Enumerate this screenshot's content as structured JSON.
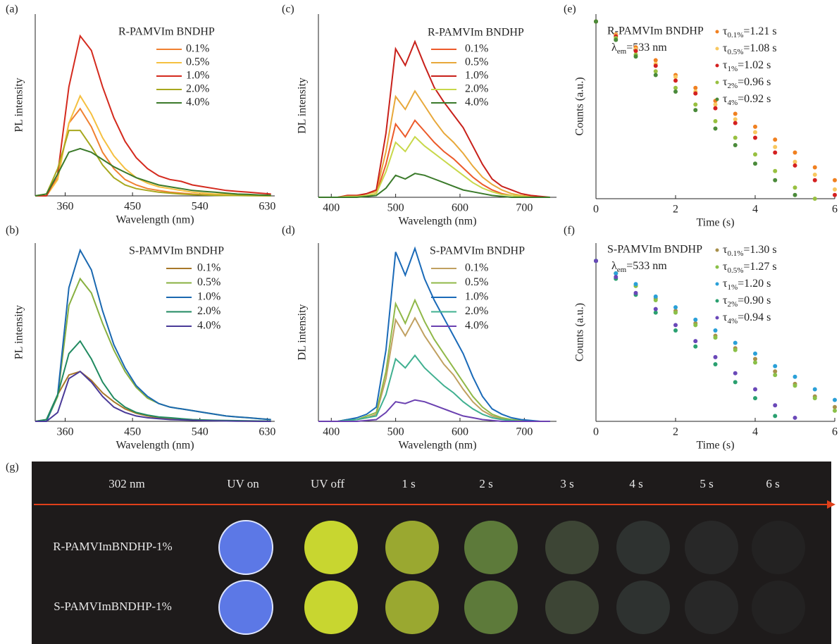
{
  "chart_data": [
    {
      "panel_label": "(a)",
      "type": "line",
      "xlabel": "Wavelength (nm)",
      "ylabel": "PL intensity",
      "legend_title": "R-PAMVIm BNDHP",
      "x": [
        320,
        335,
        350,
        365,
        380,
        395,
        410,
        425,
        440,
        455,
        470,
        485,
        500,
        515,
        530,
        545,
        560,
        575,
        590,
        605,
        620,
        635
      ],
      "xlim": [
        320,
        640
      ],
      "xticks": [
        360,
        450,
        540,
        630
      ],
      "ylim": [
        0,
        100
      ],
      "series": [
        {
          "name": "0.1%",
          "color": "#f08030",
          "values": [
            0,
            0,
            10,
            40,
            48,
            38,
            24,
            15,
            9,
            6,
            4,
            3,
            2,
            1.5,
            1,
            0.7,
            0.5,
            0.4,
            0.3,
            0.2,
            0.1,
            0.1
          ]
        },
        {
          "name": "0.5%",
          "color": "#f5c040",
          "values": [
            0,
            0,
            9,
            40,
            55,
            45,
            32,
            22,
            15,
            10,
            7,
            5,
            4,
            3,
            2,
            1.5,
            1,
            1,
            0.5,
            0.5,
            0.3,
            0.2
          ]
        },
        {
          "name": "1.0%",
          "color": "#d42a1e",
          "values": [
            0,
            0,
            12,
            60,
            88,
            80,
            60,
            43,
            30,
            21,
            15,
            11,
            9,
            8,
            6,
            5,
            4,
            3,
            2.5,
            2,
            1.5,
            1
          ]
        },
        {
          "name": "2.0%",
          "color": "#a8a81e",
          "values": [
            0,
            1,
            15,
            36,
            36,
            27,
            17,
            10,
            6,
            4,
            3,
            2,
            1.5,
            1,
            0.7,
            0.5,
            0.3,
            0.2,
            0.2,
            0.1,
            0.1,
            0
          ]
        },
        {
          "name": "4.0%",
          "color": "#3b7a2a",
          "values": [
            0,
            1,
            12,
            24,
            26,
            24,
            20,
            16,
            13,
            10,
            8,
            6,
            5,
            4,
            3,
            2.5,
            2,
            1.5,
            1,
            0.8,
            0.5,
            0.3
          ]
        }
      ]
    },
    {
      "panel_label": "(b)",
      "type": "line",
      "xlabel": "Wavelength (nm)",
      "ylabel": "PL intensity",
      "legend_title": "S-PAMVIm BNDHP",
      "x": [
        320,
        335,
        350,
        365,
        380,
        395,
        410,
        425,
        440,
        455,
        470,
        485,
        500,
        515,
        530,
        545,
        560,
        575,
        590,
        605,
        620,
        635
      ],
      "xlim": [
        320,
        640
      ],
      "xticks": [
        360,
        450,
        540,
        630
      ],
      "ylim": [
        0,
        100
      ],
      "series": [
        {
          "name": "0.1%",
          "color": "#a8782a",
          "values": [
            0,
            1,
            15,
            26,
            28,
            23,
            16,
            11,
            7,
            4.5,
            3,
            2,
            1.5,
            1,
            0.8,
            0.6,
            0.4,
            0.3,
            0.2,
            0.1,
            0.1,
            0
          ]
        },
        {
          "name": "0.5%",
          "color": "#88b040",
          "values": [
            0,
            0,
            14,
            65,
            80,
            72,
            55,
            40,
            28,
            19,
            13,
            10,
            8,
            7,
            6,
            5,
            4,
            3,
            2.5,
            2,
            1.5,
            1
          ]
        },
        {
          "name": "1.0%",
          "color": "#1a68b0",
          "values": [
            0,
            0,
            15,
            75,
            96,
            85,
            62,
            43,
            30,
            20,
            14,
            10,
            8,
            7,
            6,
            5,
            4,
            3,
            2.5,
            2,
            1.5,
            1
          ]
        },
        {
          "name": "2.0%",
          "color": "#208a60",
          "values": [
            0,
            1,
            15,
            38,
            45,
            35,
            22,
            13,
            8,
            5,
            3.5,
            2.5,
            2,
            1.5,
            1,
            0.8,
            0.6,
            0.5,
            0.4,
            0.3,
            0.2,
            0.1
          ]
        },
        {
          "name": "4.0%",
          "color": "#4a3a98",
          "values": [
            0,
            0,
            5,
            24,
            28,
            22,
            14,
            8,
            5,
            3,
            2,
            1.5,
            1,
            0.8,
            0.6,
            0.4,
            0.3,
            0.2,
            0.1,
            0.1,
            0,
            0
          ]
        }
      ]
    },
    {
      "panel_label": "(c)",
      "type": "line",
      "xlabel": "Wavelength (nm)",
      "ylabel": "DL intensity",
      "legend_title": "R-PAMVIm BNDHP",
      "x": [
        380,
        395,
        410,
        425,
        440,
        455,
        470,
        485,
        500,
        515,
        530,
        545,
        560,
        575,
        590,
        605,
        620,
        635,
        650,
        665,
        680,
        695,
        710,
        725,
        740
      ],
      "xlim": [
        380,
        750
      ],
      "xticks": [
        400,
        500,
        600,
        700
      ],
      "ylim": [
        0,
        100
      ],
      "series": [
        {
          "name": "0.1%",
          "color": "#ec5a2a",
          "values": [
            0,
            0,
            0,
            0.5,
            1,
            1,
            2,
            18,
            40,
            33,
            42,
            36,
            30,
            25,
            21,
            16,
            11,
            7,
            4,
            2,
            1,
            0.5,
            0,
            0,
            0
          ]
        },
        {
          "name": "0.5%",
          "color": "#e8a83a",
          "values": [
            0,
            0,
            0,
            1,
            1,
            2,
            3,
            25,
            55,
            48,
            58,
            50,
            42,
            35,
            30,
            24,
            17,
            11,
            7,
            4,
            2,
            1,
            0.5,
            0,
            0
          ]
        },
        {
          "name": "1.0%",
          "color": "#c8201a",
          "values": [
            0,
            0,
            0,
            1,
            1,
            2,
            4,
            35,
            81,
            72,
            85,
            72,
            60,
            52,
            45,
            38,
            28,
            18,
            10,
            6,
            4,
            2,
            1,
            0.5,
            0
          ]
        },
        {
          "name": "2.0%",
          "color": "#c8d84a",
          "values": [
            0,
            0,
            0,
            0.5,
            0.5,
            1,
            2,
            14,
            30,
            25,
            33,
            28,
            24,
            20,
            16,
            12,
            8,
            5,
            3,
            1.5,
            1,
            0.5,
            0,
            0,
            0
          ]
        },
        {
          "name": "4.0%",
          "color": "#3a7a2a",
          "values": [
            0,
            0,
            0,
            0,
            0,
            0.5,
            1,
            5,
            12,
            10,
            13,
            12,
            10,
            8,
            6,
            4,
            3,
            2,
            1,
            0.5,
            0,
            0,
            0,
            0,
            0
          ]
        }
      ]
    },
    {
      "panel_label": "(d)",
      "type": "line",
      "xlabel": "Wavelength (nm)",
      "ylabel": "DL intensity",
      "legend_title": "S-PAMVIm BNDHP",
      "x": [
        380,
        395,
        410,
        425,
        440,
        455,
        470,
        485,
        500,
        515,
        530,
        545,
        560,
        575,
        590,
        605,
        620,
        635,
        650,
        665,
        680,
        695,
        710,
        725,
        740
      ],
      "xlim": [
        380,
        750
      ],
      "xticks": [
        400,
        500,
        600,
        700
      ],
      "ylim": [
        0,
        100
      ],
      "series": [
        {
          "name": "0.1%",
          "color": "#c0a060",
          "values": [
            0,
            0,
            0,
            1,
            1,
            2,
            4,
            24,
            57,
            48,
            58,
            48,
            40,
            32,
            26,
            18,
            11,
            6,
            3,
            1.5,
            1,
            0.5,
            0,
            0,
            0
          ]
        },
        {
          "name": "0.5%",
          "color": "#90b848",
          "values": [
            0,
            0,
            0,
            1,
            1,
            3,
            5,
            28,
            66,
            55,
            68,
            56,
            46,
            38,
            30,
            22,
            14,
            8,
            4,
            2,
            1,
            0.5,
            0,
            0,
            0
          ]
        },
        {
          "name": "1.0%",
          "color": "#1a6ab8",
          "values": [
            0,
            0,
            0,
            1,
            2,
            4,
            8,
            40,
            95,
            82,
            97,
            80,
            68,
            58,
            48,
            38,
            25,
            14,
            7,
            4,
            2,
            1,
            0.5,
            0,
            0
          ]
        },
        {
          "name": "2.0%",
          "color": "#40b090",
          "values": [
            0,
            0,
            0,
            0.5,
            1,
            2,
            3,
            15,
            35,
            30,
            37,
            30,
            25,
            20,
            16,
            11,
            7,
            4,
            2,
            1,
            0.5,
            0,
            0,
            0,
            0
          ]
        },
        {
          "name": "4.0%",
          "color": "#6a40b0",
          "values": [
            0,
            0,
            0,
            0,
            0,
            0.5,
            1,
            5,
            11,
            10,
            12,
            11,
            9,
            7,
            5,
            3,
            2,
            1,
            0.5,
            0,
            0,
            0,
            0,
            0,
            0
          ]
        }
      ]
    },
    {
      "panel_label": "(e)",
      "type": "scatter",
      "xlabel": "Time (s)",
      "ylabel": "Counts (a.u.)",
      "legend_title": "R-PAMVIm BNDHP",
      "annotation": {
        "symbol": "λ",
        "subscript": "em",
        "text": "=533 nm"
      },
      "x": [
        0,
        0.5,
        1,
        1.5,
        2,
        2.5,
        3,
        3.5,
        4,
        4.5,
        5,
        5.5,
        6
      ],
      "xlim": [
        0,
        6
      ],
      "xticks": [
        0,
        2,
        4,
        6
      ],
      "ylim": [
        0,
        100
      ],
      "series": [
        {
          "symbol": "τ",
          "subscript": "0.1%",
          "name": "=1.21 s",
          "color": "#f08020",
          "values": [
            96,
            89,
            82,
            75,
            67,
            60,
            53,
            46,
            39,
            32,
            25,
            17,
            10
          ]
        },
        {
          "symbol": "τ",
          "subscript": "0.5%",
          "name": "=1.08 s",
          "color": "#f8c860",
          "values": [
            96,
            88.5,
            81,
            73,
            66,
            58,
            51,
            43,
            36,
            28,
            20,
            13,
            5
          ]
        },
        {
          "symbol": "τ",
          "subscript": "1%",
          "name": "=1.02 s",
          "color": "#d42020",
          "values": [
            96,
            88,
            80,
            72,
            64,
            57,
            49,
            41,
            33,
            25,
            18,
            10,
            2
          ]
        },
        {
          "symbol": "τ",
          "subscript": "2%",
          "name": "=0.96 s",
          "color": "#98c040",
          "values": [
            96,
            87,
            78,
            69,
            60,
            51,
            42,
            33,
            24,
            15,
            6,
            0,
            null
          ]
        },
        {
          "symbol": "τ",
          "subscript": "4%",
          "name": "=0.92 s",
          "color": "#4a8a3a",
          "values": [
            96,
            86,
            77,
            67,
            58,
            48,
            38,
            29,
            19,
            10,
            2,
            null,
            null
          ]
        }
      ]
    },
    {
      "panel_label": "(f)",
      "type": "scatter",
      "xlabel": "Time (s)",
      "ylabel": "Counts (a.u.)",
      "legend_title": "S-PAMVIm BNDHP",
      "annotation": {
        "symbol": "λ",
        "subscript": "em",
        "text": "=533 nm"
      },
      "x": [
        0,
        0.5,
        1,
        1.5,
        2,
        2.5,
        3,
        3.5,
        4,
        4.5,
        5,
        5.5,
        6
      ],
      "xlim": [
        0,
        6
      ],
      "xticks": [
        0,
        2,
        4,
        6
      ],
      "ylim": [
        0,
        100
      ],
      "series": [
        {
          "symbol": "τ",
          "subscript": "0.1%",
          "name": "=1.30 s",
          "color": "#a8904a",
          "values": [
            90,
            83,
            76,
            69,
            62,
            55,
            48,
            41,
            35,
            28,
            21,
            14,
            8
          ]
        },
        {
          "symbol": "τ",
          "subscript": "0.5%",
          "name": "=1.27 s",
          "color": "#8ac048",
          "values": [
            90,
            83,
            76,
            68,
            61,
            54,
            47,
            40,
            33,
            26,
            20,
            13,
            6
          ]
        },
        {
          "symbol": "τ",
          "subscript": "1%",
          "name": "=1.20 s",
          "color": "#2aa0d8",
          "values": [
            90,
            83,
            77,
            70,
            64,
            57,
            51,
            44,
            38,
            31,
            25,
            18,
            12
          ]
        },
        {
          "symbol": "τ",
          "subscript": "2%",
          "name": "=0.90 s",
          "color": "#2aa070",
          "values": [
            90,
            80,
            71,
            61,
            51,
            42,
            32,
            22,
            13,
            3,
            null,
            null,
            null
          ]
        },
        {
          "symbol": "τ",
          "subscript": "4%",
          "name": "=0.94 s",
          "color": "#6a48b8",
          "values": [
            90,
            81,
            72,
            63,
            54,
            45,
            36,
            27,
            18,
            9,
            2,
            null,
            null
          ]
        }
      ]
    }
  ],
  "photo": {
    "panel_label": "(g)",
    "columns": [
      "302 nm",
      "UV on",
      "UV off",
      "1 s",
      "2 s",
      "3 s",
      "4 s",
      "5 s",
      "6 s"
    ],
    "rows": [
      "R-PAMVImBNDHP-1%",
      "S-PAMVImBNDHP-1%"
    ]
  }
}
